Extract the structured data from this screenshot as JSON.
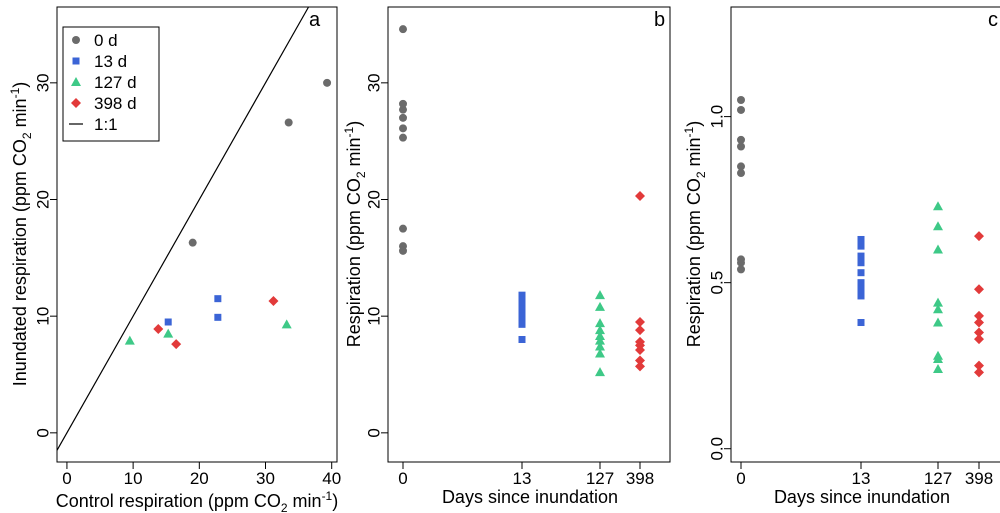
{
  "legend": {
    "items": [
      {
        "label": "0 d",
        "series": "0d"
      },
      {
        "label": "13 d",
        "series": "13d"
      },
      {
        "label": "127 d",
        "series": "127d"
      },
      {
        "label": "398 d",
        "series": "398d"
      },
      {
        "label": "1:1",
        "series": "line"
      }
    ]
  },
  "styles": {
    "0d": {
      "color": "#6b6b6b",
      "marker": "circle"
    },
    "13d": {
      "color": "#3b64d6",
      "marker": "square"
    },
    "127d": {
      "color": "#3ec987",
      "marker": "triangle"
    },
    "398d": {
      "color": "#e23a3a",
      "marker": "diamond"
    }
  },
  "chart_data": [
    {
      "panel": "a",
      "type": "scatter",
      "xlabel": "Control respiration (ppm CO2 min-1)",
      "ylabel": "Inundated respiration (ppm CO2 min-1)",
      "xlim": [
        -1.5,
        40.8
      ],
      "ylim": [
        -2.5,
        36.5
      ],
      "xticks": [
        0,
        10,
        20,
        30,
        40
      ],
      "yticks": [
        0,
        10,
        20,
        30
      ],
      "reference_line": "1:1",
      "series": [
        {
          "name": "0 d",
          "key": "0d",
          "points": [
            [
              19.0,
              16.3
            ],
            [
              33.5,
              26.6
            ],
            [
              39.3,
              30.0
            ]
          ]
        },
        {
          "name": "13 d",
          "key": "13d",
          "points": [
            [
              15.3,
              9.5
            ],
            [
              22.8,
              11.5
            ],
            [
              22.8,
              9.9
            ]
          ]
        },
        {
          "name": "127 d",
          "key": "127d",
          "points": [
            [
              9.5,
              7.9
            ],
            [
              15.3,
              8.5
            ],
            [
              33.2,
              9.3
            ]
          ]
        },
        {
          "name": "398 d",
          "key": "398d",
          "points": [
            [
              13.8,
              8.9
            ],
            [
              16.5,
              7.6
            ],
            [
              31.2,
              11.3
            ]
          ]
        }
      ]
    },
    {
      "panel": "b",
      "type": "scatter",
      "xlabel": "Days since inundation",
      "ylabel": "Respiration (ppm CO2 min-1)",
      "ylim": [
        -2.5,
        36.5
      ],
      "yticks": [
        0,
        10,
        20,
        30
      ],
      "xticks": [
        "0",
        "13",
        "127",
        "398"
      ],
      "series": [
        {
          "name": "0 d",
          "key": "0d",
          "x": "0",
          "values": [
            34.6,
            28.2,
            27.7,
            27.0,
            26.1,
            25.3,
            17.5,
            16.0,
            15.6
          ]
        },
        {
          "name": "13 d",
          "key": "13d",
          "x": "13",
          "values": [
            11.8,
            11.4,
            11.0,
            10.6,
            10.3,
            10.0,
            9.7,
            9.3,
            8.0
          ]
        },
        {
          "name": "127 d",
          "key": "127d",
          "x": "127",
          "values": [
            11.8,
            10.8,
            9.4,
            8.8,
            8.3,
            7.9,
            7.4,
            6.8,
            5.2
          ]
        },
        {
          "name": "398 d",
          "key": "398d",
          "x": "398",
          "values": [
            20.3,
            9.5,
            8.8,
            7.8,
            7.5,
            7.1,
            6.2,
            5.7
          ]
        }
      ]
    },
    {
      "panel": "c",
      "type": "scatter",
      "xlabel": "Days since inundation",
      "ylabel": "Respiration (ppm CO2 min-1)",
      "ylim": [
        -0.04,
        1.33
      ],
      "yticks": [
        0.0,
        0.5,
        1.0
      ],
      "ytick_labels": [
        "0.0",
        "0.5",
        "1.0"
      ],
      "xticks": [
        "0",
        "13",
        "127",
        "398"
      ],
      "series": [
        {
          "name": "0 d",
          "key": "0d",
          "x": "0",
          "values": [
            1.05,
            1.02,
            0.93,
            0.91,
            0.85,
            0.83,
            0.57,
            0.56,
            0.54
          ]
        },
        {
          "name": "13 d",
          "key": "13d",
          "x": "13",
          "values": [
            0.63,
            0.61,
            0.58,
            0.56,
            0.53,
            0.5,
            0.48,
            0.46,
            0.38
          ]
        },
        {
          "name": "127 d",
          "key": "127d",
          "x": "127",
          "values": [
            0.73,
            0.67,
            0.6,
            0.44,
            0.42,
            0.38,
            0.28,
            0.27,
            0.24
          ]
        },
        {
          "name": "398 d",
          "key": "398d",
          "x": "398",
          "values": [
            0.64,
            0.48,
            0.4,
            0.38,
            0.35,
            0.33,
            0.25,
            0.23
          ]
        }
      ]
    }
  ],
  "labels": {
    "a": {
      "letter": "a",
      "xlabel_pre": "Control respiration (ppm CO",
      "xlabel_sub": "2",
      "xlabel_mid": " min",
      "xlabel_sup": "-1",
      "xlabel_post": ")",
      "ylabel_pre": "Inundated respiration (ppm CO",
      "ylabel_sub": "2",
      "ylabel_mid": " min",
      "ylabel_sup": "-1",
      "ylabel_post": ")"
    },
    "b": {
      "letter": "b",
      "xlabel": "Days since inundation",
      "ylabel_pre": "Respiration (ppm CO",
      "ylabel_sub": "2",
      "ylabel_mid": " min",
      "ylabel_sup": "-1",
      "ylabel_post": ")"
    },
    "c": {
      "letter": "c",
      "xlabel": "Days since inundation",
      "ylabel_pre": "Respiration (ppm CO",
      "ylabel_sub": "2",
      "ylabel_mid": " min",
      "ylabel_sup": "-1",
      "ylabel_post": ")"
    }
  }
}
